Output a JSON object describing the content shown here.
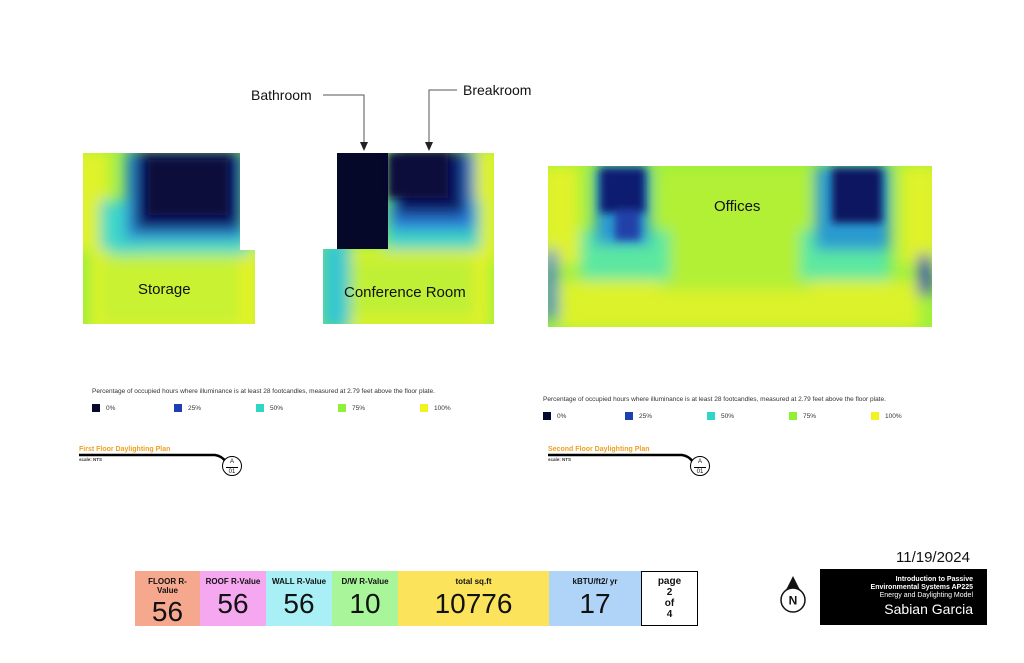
{
  "callouts": {
    "bathroom": "Bathroom",
    "breakroom": "Breakroom"
  },
  "rooms": {
    "storage": "Storage",
    "conference": "Conference Room",
    "offices": "Offices"
  },
  "legend": {
    "description": "Percentage of occupied hours where illuminance is at least 28 footcandles, measured at 2.79 feet above the floor plate.",
    "items": [
      {
        "label": "0%",
        "color": "#06082e"
      },
      {
        "label": "25%",
        "color": "#1f3fb0"
      },
      {
        "label": "50%",
        "color": "#2fd6c4"
      },
      {
        "label": "75%",
        "color": "#8ff03a"
      },
      {
        "label": "100%",
        "color": "#f2f21e"
      }
    ]
  },
  "plans": {
    "first": {
      "title": "First Floor Daylighting Plan",
      "scale": "scale: NTS",
      "badge_top": "A",
      "badge_bottom": "01"
    },
    "second": {
      "title": "Second Floor Daylighting Plan",
      "scale": "scale: NTS",
      "badge_top": "A",
      "badge_bottom": "01"
    }
  },
  "date": "11/19/2024",
  "stats": [
    {
      "label": "FLOOR R-Value",
      "value": "56",
      "color": "#f5a88e"
    },
    {
      "label": "ROOF R-Value",
      "value": "56",
      "color": "#f5a8f0"
    },
    {
      "label": "WALL R-Value",
      "value": "56",
      "color": "#a8f0f5"
    },
    {
      "label": "D/W R-Value",
      "value": "10",
      "color": "#a8f59a"
    },
    {
      "label": "total sq.ft",
      "value": "10776",
      "color": "#fbe45c"
    },
    {
      "label": "kBTU/ft2/ yr",
      "value": "17",
      "color": "#b0d4f7"
    }
  ],
  "page": {
    "line1": "page",
    "current": "2",
    "of": "of",
    "total": "4"
  },
  "north_label": "N",
  "titleblock": {
    "line1": "Introduction to Passive",
    "line2": "Environmental Systems AP225",
    "line3": "Energy and Daylighting Model",
    "author": "Sabian Garcia"
  }
}
